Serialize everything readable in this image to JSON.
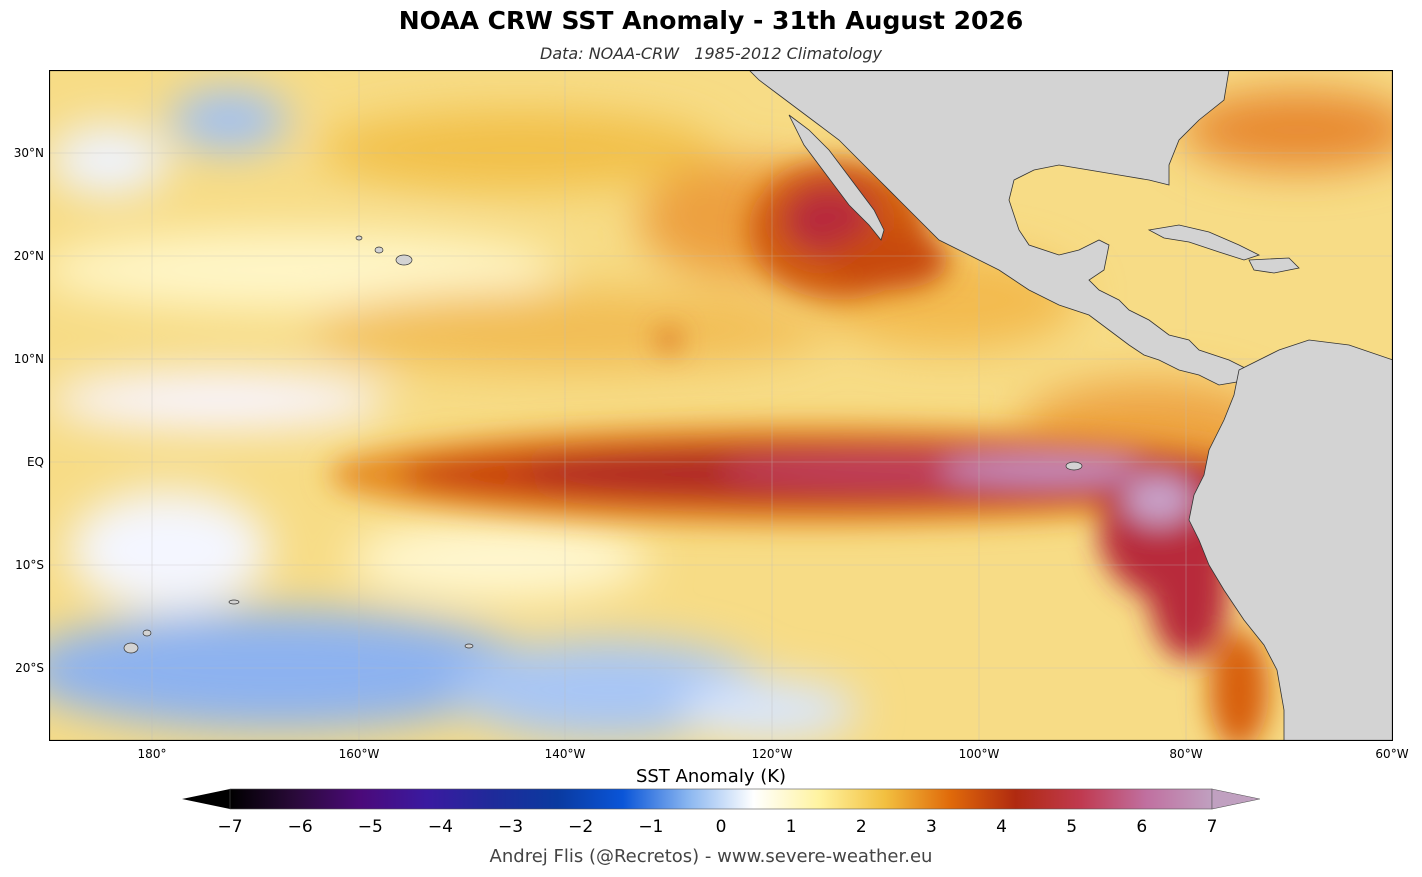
{
  "title": "NOAA CRW SST Anomaly - 31th August 2026",
  "subtitle": "Data: NOAA-CRW   1985-2012 Climatology",
  "lat_labels": [
    "30°N",
    "20°N",
    "10°N",
    "EQ",
    "10°S",
    "20°S"
  ],
  "lon_labels": [
    "180°",
    "160°W",
    "140°W",
    "120°W",
    "100°W",
    "80°W",
    "60°W"
  ],
  "colorbar": {
    "title": "SST Anomaly (K)",
    "ticks": [
      "−7",
      "−6",
      "−5",
      "−4",
      "−3",
      "−2",
      "−1",
      "0",
      "1",
      "2",
      "3",
      "4",
      "5",
      "6",
      "7"
    ],
    "range": [
      -7,
      7
    ],
    "colors": [
      "#000000",
      "#2a0a3a",
      "#4b0a7a",
      "#3a1aa0",
      "#1f2a9a",
      "#0a3aa0",
      "#0a55d8",
      "#8ab6f0",
      "#ffffff",
      "#fff3a0",
      "#f2c040",
      "#e06a0a",
      "#b02a10",
      "#c03a50",
      "#c070a0",
      "#c0a0c0"
    ]
  },
  "credit": "Andrej Flis (@Recretos) - www.severe-weather.eu",
  "colors": {
    "land": "#d3d3d3",
    "ocean_base": "#f6d77a",
    "cold": "#6f9ee8",
    "hot": "#b8283a",
    "extreme": "#c896c8"
  }
}
